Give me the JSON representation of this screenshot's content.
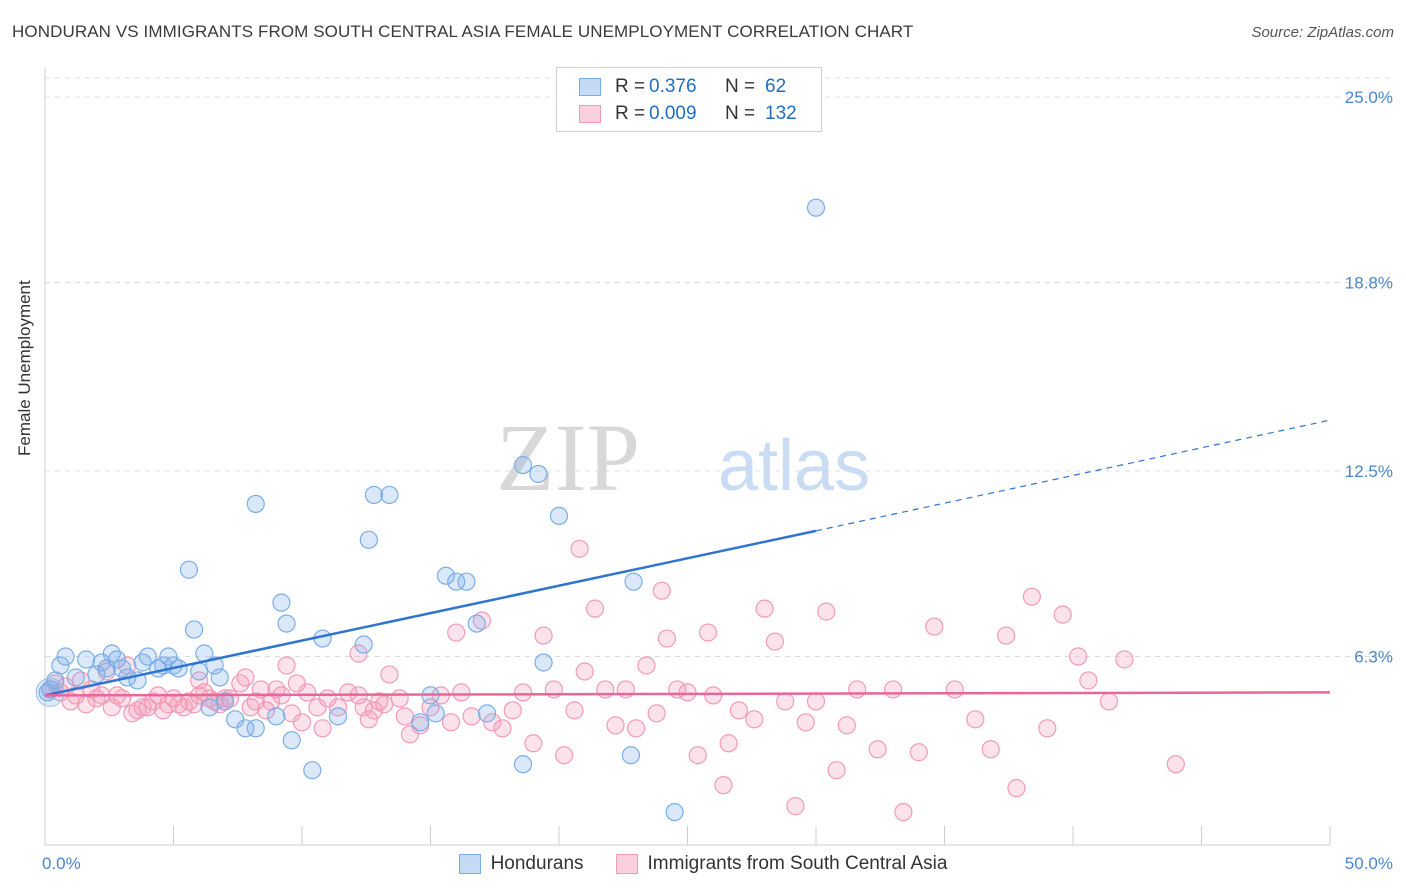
{
  "title": "HONDURAN VS IMMIGRANTS FROM SOUTH CENTRAL ASIA FEMALE UNEMPLOYMENT CORRELATION CHART",
  "source": "Source: ZipAtlas.com",
  "watermark": {
    "zip": "ZIP",
    "atlas": "atlas"
  },
  "colors": {
    "blue": "#7aaee8",
    "blue_line": "#2f74cf",
    "pink": "#f39ab7",
    "pink_line": "#e8679a",
    "tick_text": "#4a86cf"
  },
  "legend": {
    "rows": [
      {
        "r_label": "R =",
        "r_value": "0.376",
        "n_label": "N =",
        "n_value": "62"
      },
      {
        "r_label": "R =",
        "r_value": "0.009",
        "n_label": "N =",
        "n_value": "132"
      }
    ]
  },
  "bottom_legend": {
    "series1": "Hondurans",
    "series2": "Immigrants from South Central Asia"
  },
  "chart_data": {
    "type": "scatter",
    "xlabel": "",
    "ylabel": "Female Unemployment",
    "xlim": [
      0,
      50
    ],
    "ylim": [
      0,
      25
    ],
    "x_tick_labels": [
      "0.0%",
      "50.0%"
    ],
    "y_ticks": [
      6.3,
      12.5,
      18.8,
      25.0
    ],
    "y_tick_labels": [
      "6.3%",
      "12.5%",
      "18.8%",
      "25.0%"
    ],
    "grid": true,
    "legend_position": "top-center",
    "series": [
      {
        "name": "Hondurans",
        "color": "#7aaee8",
        "trend": {
          "x0": 0,
          "y0": 5.0,
          "x1": 30,
          "y1": 10.5,
          "dash_to_x": 50,
          "dash_to_y": 14.2
        },
        "points": [
          [
            0.2,
            5.2
          ],
          [
            0.4,
            5.5
          ],
          [
            0.6,
            6.0
          ],
          [
            0.8,
            6.3
          ],
          [
            1.2,
            5.6
          ],
          [
            1.6,
            6.2
          ],
          [
            2.0,
            5.7
          ],
          [
            2.2,
            6.1
          ],
          [
            2.4,
            5.9
          ],
          [
            2.6,
            6.4
          ],
          [
            2.8,
            6.2
          ],
          [
            3.0,
            5.9
          ],
          [
            3.2,
            5.6
          ],
          [
            3.6,
            5.5
          ],
          [
            3.8,
            6.1
          ],
          [
            4.0,
            6.3
          ],
          [
            4.4,
            5.9
          ],
          [
            4.6,
            6.0
          ],
          [
            4.8,
            6.3
          ],
          [
            5.0,
            6.0
          ],
          [
            5.2,
            5.9
          ],
          [
            5.6,
            9.2
          ],
          [
            5.8,
            7.2
          ],
          [
            6.0,
            5.8
          ],
          [
            6.2,
            6.4
          ],
          [
            6.4,
            4.6
          ],
          [
            6.6,
            6.0
          ],
          [
            6.8,
            5.6
          ],
          [
            7.0,
            4.8
          ],
          [
            7.4,
            4.2
          ],
          [
            7.8,
            3.9
          ],
          [
            8.2,
            11.4
          ],
          [
            8.2,
            3.9
          ],
          [
            9.0,
            4.3
          ],
          [
            9.2,
            8.1
          ],
          [
            9.4,
            7.4
          ],
          [
            9.6,
            3.5
          ],
          [
            10.4,
            2.5
          ],
          [
            10.8,
            6.9
          ],
          [
            11.4,
            4.3
          ],
          [
            12.4,
            6.7
          ],
          [
            12.6,
            10.2
          ],
          [
            12.8,
            11.7
          ],
          [
            13.4,
            11.7
          ],
          [
            14.6,
            4.1
          ],
          [
            15.0,
            5.0
          ],
          [
            15.2,
            4.4
          ],
          [
            15.6,
            9.0
          ],
          [
            16.0,
            8.8
          ],
          [
            16.4,
            8.8
          ],
          [
            16.8,
            7.4
          ],
          [
            17.2,
            4.4
          ],
          [
            18.6,
            12.7
          ],
          [
            18.6,
            2.7
          ],
          [
            19.2,
            12.4
          ],
          [
            19.4,
            6.1
          ],
          [
            20.0,
            11.0
          ],
          [
            22.8,
            3.0
          ],
          [
            22.9,
            8.8
          ],
          [
            24.5,
            1.1
          ],
          [
            30.0,
            21.3
          ],
          [
            0.1,
            5.1
          ]
        ]
      },
      {
        "name": "Immigrants from South Central Asia",
        "color": "#f39ab7",
        "trend": {
          "x0": 0,
          "y0": 5.0,
          "x1": 50,
          "y1": 5.1
        },
        "points": [
          [
            0.2,
            5.2
          ],
          [
            0.4,
            5.4
          ],
          [
            0.6,
            5.1
          ],
          [
            0.8,
            5.3
          ],
          [
            1.0,
            4.8
          ],
          [
            1.2,
            5.0
          ],
          [
            1.4,
            5.5
          ],
          [
            1.6,
            4.7
          ],
          [
            1.8,
            5.2
          ],
          [
            2.0,
            4.9
          ],
          [
            2.2,
            5.0
          ],
          [
            2.4,
            5.8
          ],
          [
            2.6,
            4.6
          ],
          [
            2.8,
            5.0
          ],
          [
            3.0,
            4.9
          ],
          [
            3.2,
            6.0
          ],
          [
            3.4,
            4.4
          ],
          [
            3.6,
            4.5
          ],
          [
            3.8,
            4.6
          ],
          [
            4.0,
            4.6
          ],
          [
            4.2,
            4.8
          ],
          [
            4.4,
            5.0
          ],
          [
            4.6,
            4.5
          ],
          [
            4.8,
            4.7
          ],
          [
            5.0,
            4.9
          ],
          [
            5.2,
            4.7
          ],
          [
            5.4,
            4.6
          ],
          [
            5.6,
            4.8
          ],
          [
            5.8,
            4.7
          ],
          [
            6.0,
            5.0
          ],
          [
            6.2,
            5.1
          ],
          [
            6.4,
            4.9
          ],
          [
            6.6,
            4.8
          ],
          [
            6.8,
            4.7
          ],
          [
            7.0,
            4.9
          ],
          [
            7.2,
            4.9
          ],
          [
            7.6,
            5.4
          ],
          [
            7.8,
            5.6
          ],
          [
            8.0,
            4.6
          ],
          [
            8.2,
            4.8
          ],
          [
            8.4,
            5.2
          ],
          [
            8.6,
            4.5
          ],
          [
            8.8,
            4.8
          ],
          [
            9.0,
            5.2
          ],
          [
            9.2,
            5.0
          ],
          [
            9.6,
            4.4
          ],
          [
            9.8,
            5.4
          ],
          [
            10.0,
            4.1
          ],
          [
            10.2,
            5.1
          ],
          [
            10.6,
            4.6
          ],
          [
            10.8,
            3.9
          ],
          [
            11.0,
            4.9
          ],
          [
            11.4,
            4.6
          ],
          [
            11.8,
            5.1
          ],
          [
            12.2,
            5.0
          ],
          [
            12.4,
            4.6
          ],
          [
            12.6,
            4.2
          ],
          [
            12.8,
            4.5
          ],
          [
            13.0,
            4.8
          ],
          [
            13.2,
            4.7
          ],
          [
            13.4,
            5.7
          ],
          [
            13.8,
            4.9
          ],
          [
            14.0,
            4.3
          ],
          [
            14.2,
            3.7
          ],
          [
            14.6,
            4.0
          ],
          [
            15.0,
            4.6
          ],
          [
            15.4,
            5.0
          ],
          [
            15.8,
            4.1
          ],
          [
            16.2,
            5.1
          ],
          [
            16.6,
            4.3
          ],
          [
            17.0,
            7.5
          ],
          [
            17.4,
            4.1
          ],
          [
            17.8,
            3.9
          ],
          [
            18.2,
            4.5
          ],
          [
            18.6,
            5.1
          ],
          [
            19.0,
            3.4
          ],
          [
            19.4,
            7.0
          ],
          [
            19.8,
            5.2
          ],
          [
            20.2,
            3.0
          ],
          [
            20.6,
            4.5
          ],
          [
            21.0,
            5.8
          ],
          [
            21.4,
            7.9
          ],
          [
            21.8,
            5.2
          ],
          [
            22.2,
            4.0
          ],
          [
            22.6,
            5.2
          ],
          [
            23.0,
            3.9
          ],
          [
            23.4,
            6.0
          ],
          [
            23.8,
            4.4
          ],
          [
            24.2,
            6.9
          ],
          [
            24.6,
            5.2
          ],
          [
            25.0,
            5.1
          ],
          [
            25.4,
            3.0
          ],
          [
            25.8,
            7.1
          ],
          [
            26.0,
            5.0
          ],
          [
            26.4,
            2.0
          ],
          [
            26.6,
            3.4
          ],
          [
            27.0,
            4.5
          ],
          [
            27.6,
            4.2
          ],
          [
            28.0,
            7.9
          ],
          [
            28.4,
            6.8
          ],
          [
            28.8,
            4.8
          ],
          [
            29.2,
            1.3
          ],
          [
            29.6,
            4.1
          ],
          [
            30.0,
            4.8
          ],
          [
            30.4,
            7.8
          ],
          [
            30.8,
            2.5
          ],
          [
            31.2,
            4.0
          ],
          [
            31.6,
            5.2
          ],
          [
            32.4,
            3.2
          ],
          [
            33.0,
            5.2
          ],
          [
            33.4,
            1.1
          ],
          [
            34.0,
            3.1
          ],
          [
            34.6,
            7.3
          ],
          [
            35.4,
            5.2
          ],
          [
            36.2,
            4.2
          ],
          [
            36.8,
            3.2
          ],
          [
            37.4,
            7.0
          ],
          [
            37.8,
            1.9
          ],
          [
            38.4,
            8.3
          ],
          [
            39.0,
            3.9
          ],
          [
            39.6,
            7.7
          ],
          [
            40.2,
            6.3
          ],
          [
            40.6,
            5.5
          ],
          [
            41.4,
            4.8
          ],
          [
            42.0,
            6.2
          ],
          [
            44.0,
            2.7
          ],
          [
            20.8,
            9.9
          ],
          [
            24.0,
            8.5
          ],
          [
            16.0,
            7.1
          ],
          [
            12.2,
            6.4
          ],
          [
            9.4,
            6.0
          ],
          [
            6.0,
            5.5
          ]
        ]
      }
    ]
  }
}
